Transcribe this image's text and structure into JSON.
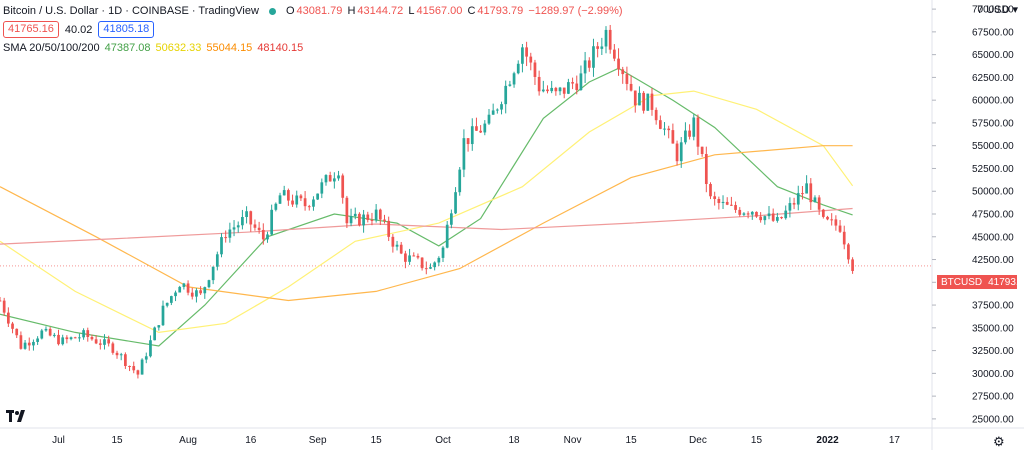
{
  "header": {
    "title": "Bitcoin / U.S. Dollar · 1D · COINBASE · TradingView",
    "o_label": "O",
    "o_value": "43081.79",
    "h_label": "H",
    "h_value": "43144.72",
    "l_label": "L",
    "l_value": "41567.00",
    "c_label": "C",
    "c_value": "41793.79",
    "change": "−1289.97 (−2.99%)"
  },
  "trade": {
    "sell": "41765.16",
    "spread": "40.02",
    "buy": "41805.18"
  },
  "sma": {
    "label": "SMA 20/50/100/200",
    "v20": "47387.08",
    "v50": "50632.33",
    "v100": "55044.15",
    "v200": "48140.15",
    "c20": "#4caf50",
    "c50": "#ffeb3b",
    "c100": "#ff9800",
    "c200": "#f44336"
  },
  "currency": "7 USD ▾",
  "price_tag": {
    "symbol": "BTCUSD",
    "value": "41793.79"
  },
  "colors": {
    "up": "#26a69a",
    "down": "#ef5350"
  },
  "icons": {
    "logo": "tradingview-logo-icon",
    "settings": "gear-icon"
  },
  "chart_data": {
    "type": "candlestick",
    "y_ticks": [
      "25000.00",
      "27500.00",
      "30000.00",
      "32500.00",
      "35000.00",
      "37500.00",
      "40000.00",
      "42500.00",
      "45000.00",
      "47500.00",
      "50000.00",
      "52500.00",
      "55000.00",
      "57500.00",
      "60000.00",
      "62500.00",
      "65000.00",
      "67500.00",
      "70000.00"
    ],
    "ylim": [
      24000,
      71000
    ],
    "x_ticks": [
      {
        "label": "Jul",
        "date": "2021-07-01"
      },
      {
        "label": "15",
        "date": "2021-07-15"
      },
      {
        "label": "Aug",
        "date": "2021-08-01"
      },
      {
        "label": "16",
        "date": "2021-08-16"
      },
      {
        "label": "Sep",
        "date": "2021-09-01"
      },
      {
        "label": "15",
        "date": "2021-09-15"
      },
      {
        "label": "Oct",
        "date": "2021-10-01"
      },
      {
        "label": "18",
        "date": "2021-10-18"
      },
      {
        "label": "Nov",
        "date": "2021-11-01"
      },
      {
        "label": "15",
        "date": "2021-11-15"
      },
      {
        "label": "Dec",
        "date": "2021-12-01"
      },
      {
        "label": "15",
        "date": "2021-12-15"
      },
      {
        "label": "2022",
        "date": "2022-01-01"
      },
      {
        "label": "17",
        "date": "2022-01-17"
      }
    ],
    "xlim": [
      "2021-06-17",
      "2022-01-26"
    ],
    "anchors": [
      [
        "2021-06-17",
        38000
      ],
      [
        "2021-06-22",
        33000
      ],
      [
        "2021-06-27",
        34500
      ],
      [
        "2021-07-02",
        33500
      ],
      [
        "2021-07-07",
        34200
      ],
      [
        "2021-07-14",
        32800
      ],
      [
        "2021-07-20",
        29900
      ],
      [
        "2021-07-26",
        37000
      ],
      [
        "2021-07-30",
        40000
      ],
      [
        "2021-08-04",
        38500
      ],
      [
        "2021-08-10",
        45500
      ],
      [
        "2021-08-15",
        47000
      ],
      [
        "2021-08-19",
        44800
      ],
      [
        "2021-08-23",
        49500
      ],
      [
        "2021-08-29",
        48500
      ],
      [
        "2021-09-06",
        52600
      ],
      [
        "2021-09-08",
        46500
      ],
      [
        "2021-09-15",
        47500
      ],
      [
        "2021-09-21",
        43000
      ],
      [
        "2021-09-28",
        41500
      ],
      [
        "2021-10-01",
        43700
      ],
      [
        "2021-10-06",
        55500
      ],
      [
        "2021-10-12",
        57500
      ],
      [
        "2021-10-16",
        61500
      ],
      [
        "2021-10-20",
        66000
      ],
      [
        "2021-10-24",
        61500
      ],
      [
        "2021-10-28",
        60500
      ],
      [
        "2021-11-03",
        62500
      ],
      [
        "2021-11-09",
        67500
      ],
      [
        "2021-11-12",
        64500
      ],
      [
        "2021-11-16",
        60200
      ],
      [
        "2021-11-20",
        59500
      ],
      [
        "2021-11-26",
        54000
      ],
      [
        "2021-11-30",
        57500
      ],
      [
        "2021-12-04",
        49000
      ],
      [
        "2021-12-09",
        48000
      ],
      [
        "2021-12-14",
        48000
      ],
      [
        "2021-12-20",
        46500
      ],
      [
        "2021-12-27",
        50500
      ],
      [
        "2021-12-31",
        46500
      ],
      [
        "2022-01-04",
        46200
      ],
      [
        "2022-01-07",
        41800
      ]
    ],
    "sma": {
      "sma20": [
        [
          "2021-06-17",
          36500
        ],
        [
          "2021-07-05",
          34500
        ],
        [
          "2021-07-25",
          33000
        ],
        [
          "2021-08-05",
          37500
        ],
        [
          "2021-08-20",
          45000
        ],
        [
          "2021-09-05",
          47500
        ],
        [
          "2021-09-20",
          46500
        ],
        [
          "2021-09-30",
          44000
        ],
        [
          "2021-10-10",
          47000
        ],
        [
          "2021-10-25",
          58000
        ],
        [
          "2021-11-05",
          62000
        ],
        [
          "2021-11-12",
          63500
        ],
        [
          "2021-11-25",
          60000
        ],
        [
          "2021-12-05",
          57000
        ],
        [
          "2021-12-20",
          50500
        ],
        [
          "2021-12-31",
          48500
        ],
        [
          "2022-01-07",
          47400
        ]
      ],
      "sma50": [
        [
          "2021-06-17",
          44500
        ],
        [
          "2021-07-05",
          39000
        ],
        [
          "2021-07-25",
          34500
        ],
        [
          "2021-08-10",
          35500
        ],
        [
          "2021-08-25",
          39500
        ],
        [
          "2021-09-10",
          44500
        ],
        [
          "2021-09-30",
          46500
        ],
        [
          "2021-10-20",
          50500
        ],
        [
          "2021-11-05",
          56500
        ],
        [
          "2021-11-20",
          60500
        ],
        [
          "2021-11-30",
          61000
        ],
        [
          "2021-12-15",
          59000
        ],
        [
          "2021-12-31",
          55000
        ],
        [
          "2022-01-07",
          50600
        ]
      ],
      "sma100": [
        [
          "2021-06-17",
          50500
        ],
        [
          "2021-07-10",
          45000
        ],
        [
          "2021-08-01",
          39500
        ],
        [
          "2021-08-25",
          38000
        ],
        [
          "2021-09-15",
          39000
        ],
        [
          "2021-10-05",
          41500
        ],
        [
          "2021-10-25",
          46500
        ],
        [
          "2021-11-15",
          51500
        ],
        [
          "2021-12-05",
          54000
        ],
        [
          "2021-12-31",
          55000
        ],
        [
          "2022-01-07",
          55000
        ]
      ],
      "sma200": [
        [
          "2021-06-17",
          44200
        ],
        [
          "2021-07-15",
          44800
        ],
        [
          "2021-08-15",
          45500
        ],
        [
          "2021-09-15",
          46400
        ],
        [
          "2021-10-15",
          45800
        ],
        [
          "2021-11-15",
          46500
        ],
        [
          "2021-12-15",
          47300
        ],
        [
          "2022-01-07",
          48100
        ]
      ]
    }
  }
}
